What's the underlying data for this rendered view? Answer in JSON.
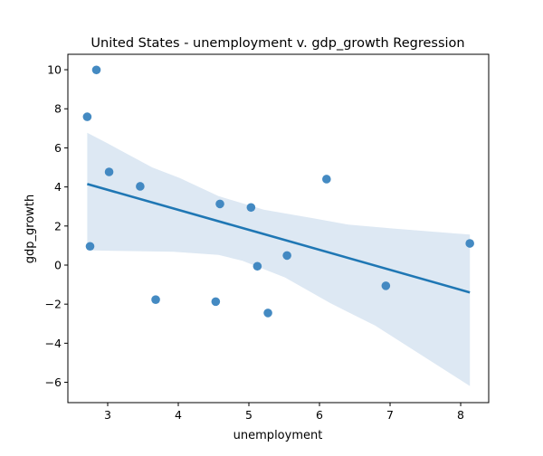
{
  "chart_data": {
    "type": "scatter",
    "title": "United States - unemployment v. gdp_growth Regression",
    "xlabel": "unemployment",
    "ylabel": "gdp_growth",
    "xlim": [
      2.436,
      8.397
    ],
    "ylim": [
      -7.04,
      10.79
    ],
    "xticks": [
      3,
      4,
      5,
      6,
      7,
      8
    ],
    "yticks": [
      -6,
      -4,
      -2,
      0,
      2,
      4,
      6,
      8,
      10
    ],
    "grid": false,
    "points": [
      {
        "x": 2.84,
        "y": 9.99
      },
      {
        "x": 2.71,
        "y": 7.59
      },
      {
        "x": 2.75,
        "y": 0.96
      },
      {
        "x": 3.02,
        "y": 4.77
      },
      {
        "x": 3.46,
        "y": 4.03
      },
      {
        "x": 3.68,
        "y": -1.77
      },
      {
        "x": 4.53,
        "y": -1.87
      },
      {
        "x": 4.59,
        "y": 3.13
      },
      {
        "x": 5.03,
        "y": 2.95
      },
      {
        "x": 5.12,
        "y": -0.06
      },
      {
        "x": 5.27,
        "y": -2.45
      },
      {
        "x": 5.54,
        "y": 0.49
      },
      {
        "x": 6.1,
        "y": 4.4
      },
      {
        "x": 6.94,
        "y": -1.06
      },
      {
        "x": 8.13,
        "y": 1.11
      }
    ],
    "regression_line": {
      "x": [
        2.71,
        8.13
      ],
      "y": [
        4.15,
        -1.4
      ]
    },
    "confidence_band": {
      "upper": [
        [
          2.71,
          6.77
        ],
        [
          3.0,
          6.23
        ],
        [
          3.63,
          5.0
        ],
        [
          4.02,
          4.46
        ],
        [
          4.57,
          3.53
        ],
        [
          5.21,
          2.84
        ],
        [
          5.94,
          2.38
        ],
        [
          6.41,
          2.07
        ],
        [
          7.05,
          1.87
        ],
        [
          8.13,
          1.56
        ]
      ],
      "lower": [
        [
          2.71,
          0.76
        ],
        [
          3.08,
          0.73
        ],
        [
          3.93,
          0.68
        ],
        [
          4.57,
          0.52
        ],
        [
          4.91,
          0.22
        ],
        [
          5.51,
          -0.63
        ],
        [
          6.15,
          -1.94
        ],
        [
          6.79,
          -3.1
        ],
        [
          8.13,
          -6.19
        ]
      ]
    },
    "colors": {
      "points": "#3a84bf",
      "line": "#1f77b4",
      "band": "#dde8f3"
    }
  }
}
